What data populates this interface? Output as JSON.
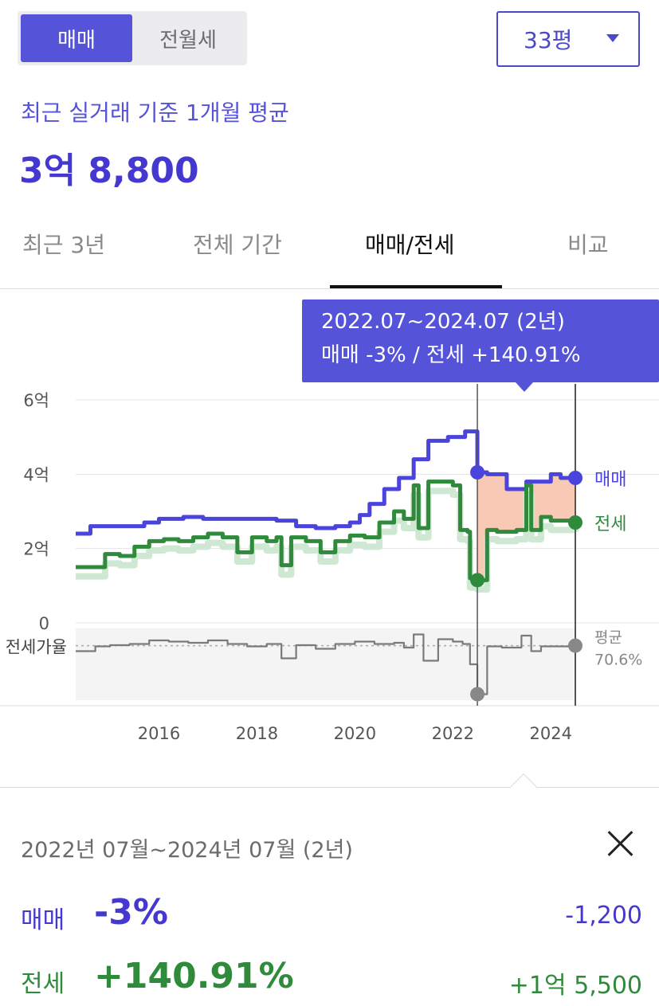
{
  "trade_tabs": {
    "sale": "매매",
    "jeonse": "전월세"
  },
  "area_select": {
    "value": "33평"
  },
  "summary": {
    "label": "최근 실거래 기준 1개월 평균",
    "price": "3억 8,800"
  },
  "view_tabs": [
    "최근 3년",
    "전체 기간",
    "매매/전세",
    "비교"
  ],
  "tooltip": {
    "period": "2022.07~2024.07 (2년)",
    "change": "매매 -3%  /  전세 +140.91%"
  },
  "colors": {
    "sale": "#4b44dc",
    "jeonse": "#2f8a3c",
    "accent": "#5553d8",
    "ratio": "#7a7a7a",
    "range_fill": "#f8c9b4"
  },
  "chart_data": {
    "type": "line",
    "yaxis_ticks": [
      "6억",
      "4억",
      "2억",
      "0"
    ],
    "ylim": [
      0,
      6
    ],
    "xaxis_ticks": [
      "2016",
      "2018",
      "2020",
      "2022",
      "2024"
    ],
    "x_ticks_values": [
      2016,
      2018,
      2020,
      2022,
      2024
    ],
    "xlim": [
      2014.3,
      2025.3
    ],
    "ratio_axis_label": "전세가율",
    "series": [
      {
        "name": "매매",
        "x": [
          2014.3,
          2014.6,
          2015.0,
          2015.4,
          2015.7,
          2016.0,
          2016.5,
          2016.9,
          2017.3,
          2017.7,
          2018.0,
          2018.4,
          2018.8,
          2019.2,
          2019.6,
          2019.9,
          2020.1,
          2020.3,
          2020.6,
          2020.9,
          2021.2,
          2021.5,
          2021.9,
          2022.1,
          2022.25,
          2022.5,
          2022.7,
          2022.9,
          2023.1,
          2023.5,
          2023.8,
          2024.0,
          2024.2,
          2024.5
        ],
        "values": [
          2.4,
          2.6,
          2.6,
          2.6,
          2.7,
          2.8,
          2.85,
          2.8,
          2.8,
          2.8,
          2.8,
          2.75,
          2.6,
          2.55,
          2.6,
          2.7,
          2.9,
          3.2,
          3.6,
          3.9,
          4.4,
          4.9,
          5.0,
          5.0,
          5.15,
          4.05,
          4.0,
          4.0,
          3.6,
          3.8,
          3.8,
          4.0,
          3.9,
          3.9
        ]
      },
      {
        "name": "전세",
        "x": [
          2014.3,
          2014.6,
          2014.9,
          2015.2,
          2015.5,
          2015.8,
          2016.1,
          2016.4,
          2016.7,
          2017.0,
          2017.3,
          2017.6,
          2017.9,
          2018.2,
          2018.4,
          2018.5,
          2018.7,
          2019.0,
          2019.3,
          2019.6,
          2019.9,
          2020.2,
          2020.5,
          2020.8,
          2021.0,
          2021.2,
          2021.3,
          2021.5,
          2021.8,
          2022.0,
          2022.15,
          2022.3,
          2022.35,
          2022.5,
          2022.7,
          2022.9,
          2023.1,
          2023.3,
          2023.5,
          2023.6,
          2023.8,
          2024.0,
          2024.2,
          2024.5
        ],
        "values": [
          1.5,
          1.5,
          1.85,
          1.8,
          2.05,
          2.2,
          2.25,
          2.2,
          2.3,
          2.4,
          2.3,
          1.9,
          2.3,
          2.2,
          2.3,
          1.55,
          2.3,
          2.2,
          1.9,
          2.2,
          2.35,
          2.3,
          2.7,
          3.0,
          2.8,
          3.7,
          2.55,
          3.8,
          3.8,
          3.7,
          2.5,
          2.45,
          1.2,
          1.15,
          2.5,
          2.45,
          2.45,
          2.5,
          3.7,
          2.5,
          2.85,
          2.75,
          2.75,
          2.7
        ]
      },
      {
        "name": "전세가율",
        "x": [
          2014.3,
          2014.7,
          2015.0,
          2015.4,
          2015.8,
          2016.2,
          2016.6,
          2017.0,
          2017.4,
          2017.8,
          2018.2,
          2018.5,
          2018.8,
          2019.2,
          2019.6,
          2020.0,
          2020.4,
          2020.8,
          2021.0,
          2021.2,
          2021.4,
          2021.7,
          2022.0,
          2022.2,
          2022.35,
          2022.5,
          2022.7,
          2023.0,
          2023.4,
          2023.6,
          2023.8,
          2024.1,
          2024.5
        ],
        "values": [
          66,
          70,
          71,
          72,
          75,
          74,
          73,
          75,
          72,
          70,
          72,
          60,
          71,
          68,
          72,
          74,
          72,
          73,
          69,
          80,
          58,
          76,
          74,
          72,
          55,
          30,
          70,
          69,
          79,
          66,
          70,
          70,
          70.6
        ]
      }
    ],
    "end_labels": {
      "sale": "매매",
      "jeonse": "전세",
      "ratio": "평균",
      "ratio_value": "70.6%"
    },
    "selection": {
      "start": 2022.5,
      "end": 2024.5
    }
  },
  "detail": {
    "period": "2022년 07월~2024년 07월 (2년)",
    "sale": {
      "label": "매매",
      "pct": "-3%",
      "amount": "-1,200"
    },
    "jeonse": {
      "label": "전세",
      "pct": "+140.91%",
      "amount": "+1억 5,500"
    }
  }
}
